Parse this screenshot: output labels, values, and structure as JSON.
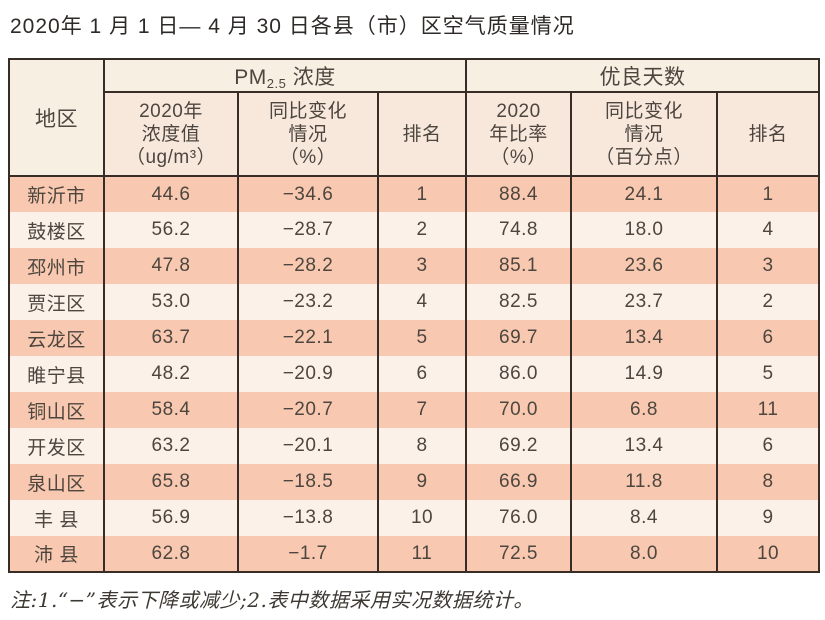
{
  "title": "2020年 1 月 1 日— 4 月 30 日各县（市）区空气质量情况",
  "footnote": "注:1.“−”表示下降或减少;2.表中数据采用实况数据统计。",
  "colors": {
    "border": "#372c26",
    "row_odd": "#f8c9b0",
    "row_even": "#fcf1e9",
    "header_top": "#f8efe3",
    "header_sub": "#f8e8dc"
  },
  "table": {
    "region_header": "地区",
    "pm_group": {
      "prefix": "PM",
      "sub": "2.5",
      "suffix": " 浓度"
    },
    "good_group": "优良天数",
    "sub_headers": [
      "2020年\n浓度值\n（ug/m³）",
      "同比变化\n情况\n（%）",
      "排名",
      "2020\n年比率\n（%）",
      "同比变化\n情况\n（百分点）",
      "排名"
    ],
    "rows": [
      {
        "region": "新沂市",
        "pm_value": "44.6",
        "pm_change": "−34.6",
        "pm_rank": "1",
        "good_ratio": "88.4",
        "good_change": "24.1",
        "good_rank": "1"
      },
      {
        "region": "鼓楼区",
        "pm_value": "56.2",
        "pm_change": "−28.7",
        "pm_rank": "2",
        "good_ratio": "74.8",
        "good_change": "18.0",
        "good_rank": "4"
      },
      {
        "region": "邳州市",
        "pm_value": "47.8",
        "pm_change": "−28.2",
        "pm_rank": "3",
        "good_ratio": "85.1",
        "good_change": "23.6",
        "good_rank": "3"
      },
      {
        "region": "贾汪区",
        "pm_value": "53.0",
        "pm_change": "−23.2",
        "pm_rank": "4",
        "good_ratio": "82.5",
        "good_change": "23.7",
        "good_rank": "2"
      },
      {
        "region": "云龙区",
        "pm_value": "63.7",
        "pm_change": "−22.1",
        "pm_rank": "5",
        "good_ratio": "69.7",
        "good_change": "13.4",
        "good_rank": "6"
      },
      {
        "region": "睢宁县",
        "pm_value": "48.2",
        "pm_change": "−20.9",
        "pm_rank": "6",
        "good_ratio": "86.0",
        "good_change": "14.9",
        "good_rank": "5"
      },
      {
        "region": "铜山区",
        "pm_value": "58.4",
        "pm_change": "−20.7",
        "pm_rank": "7",
        "good_ratio": "70.0",
        "good_change": "6.8",
        "good_rank": "11"
      },
      {
        "region": "开发区",
        "pm_value": "63.2",
        "pm_change": "−20.1",
        "pm_rank": "8",
        "good_ratio": "69.2",
        "good_change": "13.4",
        "good_rank": "6"
      },
      {
        "region": "泉山区",
        "pm_value": "65.8",
        "pm_change": "−18.5",
        "pm_rank": "9",
        "good_ratio": "66.9",
        "good_change": "11.8",
        "good_rank": "8"
      },
      {
        "region": "丰 县",
        "pm_value": "56.9",
        "pm_change": "−13.8",
        "pm_rank": "10",
        "good_ratio": "76.0",
        "good_change": "8.4",
        "good_rank": "9"
      },
      {
        "region": "沛 县",
        "pm_value": "62.8",
        "pm_change": "−1.7",
        "pm_rank": "11",
        "good_ratio": "72.5",
        "good_change": "8.0",
        "good_rank": "10"
      }
    ]
  }
}
